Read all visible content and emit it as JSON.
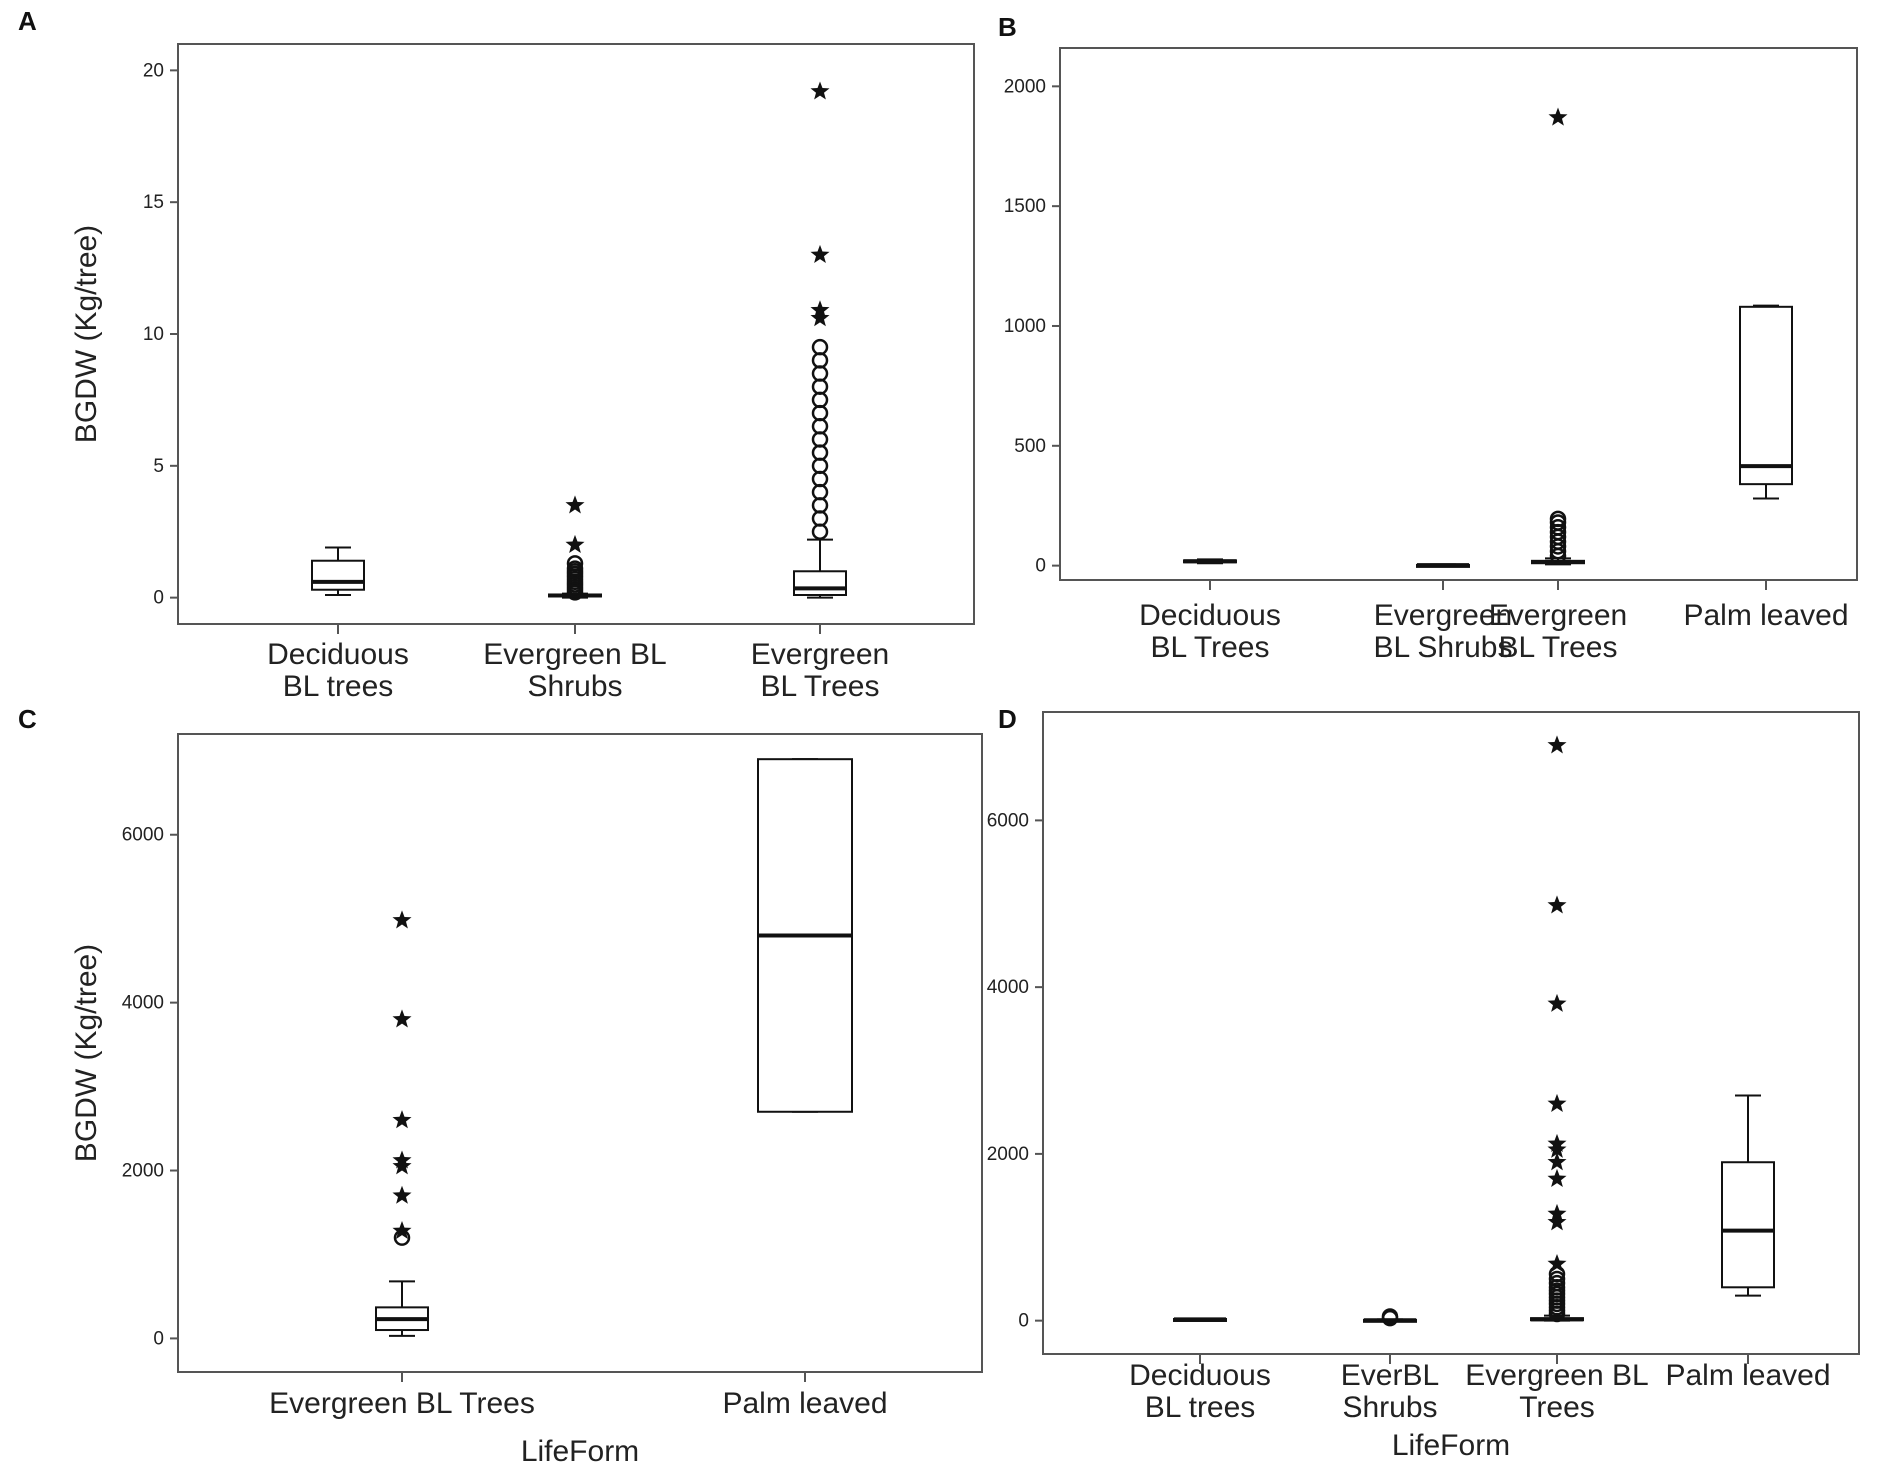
{
  "figure": {
    "ink_color": "#111111",
    "background": "#ffffff"
  },
  "chart_data": [
    {
      "type": "box",
      "panel_label": "A",
      "ylabel": "BGDW (Kg/tree)",
      "xlabel": "",
      "ylim": [
        -1,
        21
      ],
      "yticks": [
        0,
        5,
        10,
        15,
        20
      ],
      "categories": [
        [
          "Deciduous",
          "BL trees"
        ],
        [
          "Evergreen BL",
          "Shrubs"
        ],
        [
          "Evergreen",
          "BL Trees"
        ]
      ],
      "boxes": [
        {
          "min": 0.1,
          "q1": 0.3,
          "median": 0.6,
          "q3": 1.4,
          "max": 1.9,
          "outliers": [],
          "extremes": []
        },
        {
          "min": 0.0,
          "q1": 0.05,
          "median": 0.08,
          "q3": 0.12,
          "max": 0.15,
          "outliers": [
            0.2,
            0.3,
            0.4,
            0.5,
            0.6,
            0.7,
            0.8,
            0.9,
            1.0,
            1.1,
            1.3
          ],
          "extremes": [
            2.0,
            3.5
          ]
        },
        {
          "min": 0.0,
          "q1": 0.1,
          "median": 0.35,
          "q3": 1.0,
          "max": 2.2,
          "outliers": [
            2.5,
            3.0,
            3.5,
            4.0,
            4.5,
            5.0,
            5.5,
            6.0,
            6.5,
            7.0,
            7.5,
            8.0,
            8.5,
            9.0,
            9.5
          ],
          "extremes": [
            10.6,
            10.9,
            13.0,
            19.2
          ]
        }
      ]
    },
    {
      "type": "box",
      "panel_label": "B",
      "ylabel": "",
      "xlabel": "",
      "ylim": [
        -60,
        2160
      ],
      "yticks": [
        0,
        500,
        1000,
        1500,
        2000
      ],
      "categories": [
        [
          "Deciduous",
          "BL Trees"
        ],
        [
          "Evergreen",
          "BL Shrubs"
        ],
        [
          "Evergreen",
          "BL Trees"
        ],
        [
          "Palm leaved"
        ]
      ],
      "boxes": [
        {
          "min": 10,
          "q1": 14,
          "median": 18,
          "q3": 22,
          "max": 26,
          "outliers": [],
          "extremes": []
        },
        {
          "min": 0,
          "q1": 1,
          "median": 2,
          "q3": 3,
          "max": 5,
          "outliers": [],
          "extremes": []
        },
        {
          "min": 5,
          "q1": 10,
          "median": 15,
          "q3": 20,
          "max": 30,
          "outliers": [
            40,
            60,
            80,
            100,
            120,
            140,
            160,
            180,
            195
          ],
          "extremes": [
            1870
          ]
        },
        {
          "min": 280,
          "q1": 340,
          "median": 415,
          "q3": 1080,
          "max": 1085,
          "outliers": [],
          "extremes": []
        }
      ]
    },
    {
      "type": "box",
      "panel_label": "C",
      "ylabel": "BGDW (Kg/tree)",
      "xlabel": "LifeForm",
      "ylim": [
        -400,
        7200
      ],
      "yticks": [
        0,
        2000,
        4000,
        6000
      ],
      "categories": [
        [
          "Evergreen BL Trees"
        ],
        [
          "Palm leaved"
        ]
      ],
      "boxes": [
        {
          "min": 30,
          "q1": 100,
          "median": 230,
          "q3": 370,
          "max": 680,
          "outliers": [
            1200
          ],
          "extremes": [
            1280,
            1700,
            2050,
            2120,
            2600,
            3800,
            4980
          ]
        },
        {
          "min": 2700,
          "q1": 2700,
          "median": 4800,
          "q3": 6900,
          "max": 6900,
          "outliers": [],
          "extremes": []
        }
      ]
    },
    {
      "type": "box",
      "panel_label": "D",
      "ylabel": "",
      "xlabel": "LifeForm",
      "ylim": [
        -400,
        7300
      ],
      "yticks": [
        0,
        2000,
        4000,
        6000
      ],
      "categories": [
        [
          "Deciduous",
          "BL   trees"
        ],
        [
          "EverBL",
          "Shrubs"
        ],
        [
          "Evergreen BL",
          "Trees"
        ],
        [
          "Palm leaved"
        ]
      ],
      "boxes": [
        {
          "min": 5,
          "q1": 10,
          "median": 15,
          "q3": 20,
          "max": 25,
          "outliers": [],
          "extremes": []
        },
        {
          "min": 0,
          "q1": 2,
          "median": 5,
          "q3": 10,
          "max": 15,
          "outliers": [
            30,
            50
          ],
          "extremes": []
        },
        {
          "min": 0,
          "q1": 5,
          "median": 15,
          "q3": 30,
          "max": 60,
          "outliers": [
            80,
            120,
            160,
            200,
            240,
            280,
            320,
            360,
            400,
            450,
            500,
            560
          ],
          "extremes": [
            680,
            1180,
            1280,
            1700,
            1900,
            2050,
            2120,
            2600,
            3800,
            4980,
            6900
          ]
        },
        {
          "min": 300,
          "q1": 400,
          "median": 1080,
          "q3": 1900,
          "max": 2700,
          "outliers": [],
          "extremes": []
        }
      ]
    }
  ]
}
